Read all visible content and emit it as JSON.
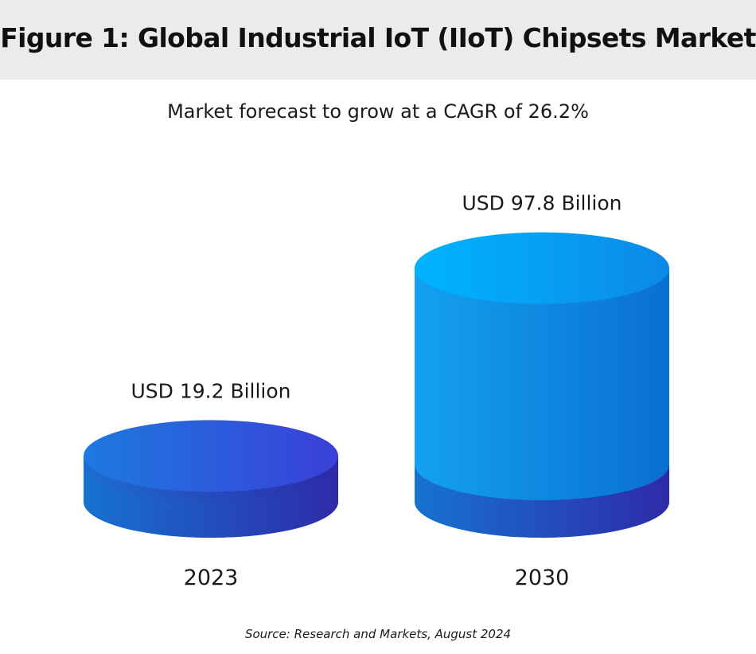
{
  "chart_data": {
    "type": "bar",
    "title": "Figure 1: Global Industrial IoT (IIoT) Chipsets Market",
    "subtitle": "Market forecast to grow at a CAGR of 26.2%",
    "categories": [
      "2023",
      "2030"
    ],
    "values": [
      19.2,
      97.8
    ],
    "value_labels": [
      "USD 19.2 Billion",
      "USD 97.8 Billion"
    ],
    "unit": "USD Billion",
    "source": "Source: Research and Markets, August 2024",
    "colors": {
      "top_light": "#00a8f5",
      "top_dark": "#1f6fde",
      "side_light": "#1a84e0",
      "side_dark": "#2a2fb0",
      "band_light": "#1574cf",
      "band_dark": "#2b2aa8",
      "header_bg": "#ebebeb"
    }
  }
}
